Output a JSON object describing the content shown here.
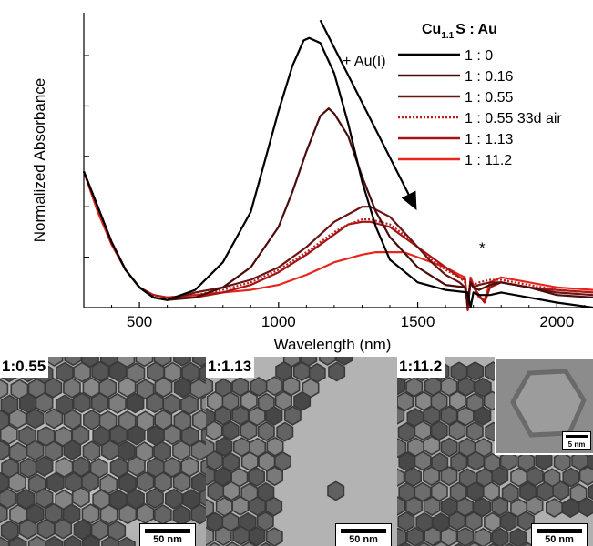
{
  "chart_data": {
    "type": "line",
    "title": "",
    "xlabel": "Wavelength (nm)",
    "ylabel": "Normalized Absorbance",
    "xlim": [
      300,
      2130
    ],
    "ylim": [
      0,
      1.17
    ],
    "x_ticks": [
      500,
      1000,
      1500,
      2000
    ],
    "x_tick_labels": [
      "500",
      "1000",
      "1500",
      "2000"
    ],
    "y_tick_labels_shown": false,
    "grid": false,
    "legend": {
      "position": "top-right",
      "header_main": "Cu",
      "header_sub": "1.1",
      "header_rest": "S : Au"
    },
    "annotations": [
      {
        "text": "+ Au(I)",
        "x": 1340,
        "y": 0.98
      },
      {
        "text": "*",
        "x": 1725,
        "y": 0.17
      }
    ],
    "arrow": {
      "from": [
        1150,
        1.14
      ],
      "to": [
        1490,
        0.4
      ]
    },
    "series": [
      {
        "name": "1 : 0",
        "color": "#000000",
        "dash": "solid",
        "points": [
          [
            300,
            0.54
          ],
          [
            350,
            0.4
          ],
          [
            400,
            0.26
          ],
          [
            450,
            0.15
          ],
          [
            500,
            0.08
          ],
          [
            550,
            0.04
          ],
          [
            600,
            0.03
          ],
          [
            700,
            0.07
          ],
          [
            800,
            0.18
          ],
          [
            900,
            0.38
          ],
          [
            950,
            0.58
          ],
          [
            1000,
            0.78
          ],
          [
            1050,
            0.96
          ],
          [
            1090,
            1.06
          ],
          [
            1110,
            1.07
          ],
          [
            1150,
            1.05
          ],
          [
            1200,
            0.93
          ],
          [
            1250,
            0.73
          ],
          [
            1300,
            0.5
          ],
          [
            1350,
            0.32
          ],
          [
            1400,
            0.19
          ],
          [
            1500,
            0.1
          ],
          [
            1600,
            0.07
          ],
          [
            1680,
            0.06
          ],
          [
            1690,
            0.0
          ],
          [
            1700,
            0.06
          ],
          [
            1720,
            0.05
          ],
          [
            1760,
            0.05
          ],
          [
            1800,
            0.06
          ],
          [
            1900,
            0.04
          ],
          [
            2000,
            0.02
          ],
          [
            2130,
            0.0
          ]
        ]
      },
      {
        "name": "1 : 0.16",
        "color": "#4a0d0d",
        "dash": "solid",
        "points": [
          [
            300,
            0.54
          ],
          [
            350,
            0.4
          ],
          [
            400,
            0.26
          ],
          [
            450,
            0.15
          ],
          [
            500,
            0.08
          ],
          [
            550,
            0.04
          ],
          [
            600,
            0.03
          ],
          [
            700,
            0.04
          ],
          [
            800,
            0.08
          ],
          [
            900,
            0.16
          ],
          [
            1000,
            0.32
          ],
          [
            1050,
            0.46
          ],
          [
            1100,
            0.62
          ],
          [
            1150,
            0.76
          ],
          [
            1180,
            0.79
          ],
          [
            1200,
            0.77
          ],
          [
            1250,
            0.68
          ],
          [
            1300,
            0.52
          ],
          [
            1350,
            0.38
          ],
          [
            1400,
            0.28
          ],
          [
            1500,
            0.16
          ],
          [
            1600,
            0.09
          ],
          [
            1670,
            0.08
          ],
          [
            1680,
            0.01
          ],
          [
            1690,
            0.1
          ],
          [
            1700,
            0.08
          ],
          [
            1720,
            0.07
          ],
          [
            1760,
            0.09
          ],
          [
            1800,
            0.1
          ],
          [
            1900,
            0.08
          ],
          [
            2000,
            0.05
          ],
          [
            2130,
            0.04
          ]
        ]
      },
      {
        "name": "1 : 0.55",
        "color": "#6b1414",
        "dash": "solid",
        "points": [
          [
            300,
            0.54
          ],
          [
            350,
            0.4
          ],
          [
            400,
            0.26
          ],
          [
            450,
            0.15
          ],
          [
            500,
            0.08
          ],
          [
            550,
            0.04
          ],
          [
            600,
            0.03
          ],
          [
            700,
            0.06
          ],
          [
            800,
            0.08
          ],
          [
            900,
            0.11
          ],
          [
            1000,
            0.16
          ],
          [
            1100,
            0.24
          ],
          [
            1200,
            0.34
          ],
          [
            1250,
            0.37
          ],
          [
            1300,
            0.4
          ],
          [
            1330,
            0.4
          ],
          [
            1400,
            0.36
          ],
          [
            1450,
            0.3
          ],
          [
            1500,
            0.24
          ],
          [
            1550,
            0.18
          ],
          [
            1600,
            0.13
          ],
          [
            1650,
            0.1
          ],
          [
            1670,
            0.08
          ],
          [
            1680,
            0.02
          ],
          [
            1690,
            0.1
          ],
          [
            1700,
            0.08
          ],
          [
            1720,
            0.09
          ],
          [
            1760,
            0.1
          ],
          [
            1800,
            0.1
          ],
          [
            1900,
            0.08
          ],
          [
            2000,
            0.06
          ],
          [
            2130,
            0.05
          ]
        ]
      },
      {
        "name": "1 : 0.55 33d air",
        "color": "#c01b1b",
        "dash": "dotted",
        "points": [
          [
            300,
            0.54
          ],
          [
            350,
            0.4
          ],
          [
            400,
            0.26
          ],
          [
            450,
            0.15
          ],
          [
            500,
            0.08
          ],
          [
            550,
            0.05
          ],
          [
            600,
            0.04
          ],
          [
            700,
            0.05
          ],
          [
            800,
            0.07
          ],
          [
            900,
            0.1
          ],
          [
            1000,
            0.15
          ],
          [
            1100,
            0.22
          ],
          [
            1200,
            0.3
          ],
          [
            1250,
            0.33
          ],
          [
            1300,
            0.35
          ],
          [
            1330,
            0.35
          ],
          [
            1400,
            0.33
          ],
          [
            1450,
            0.29
          ],
          [
            1500,
            0.24
          ],
          [
            1550,
            0.19
          ],
          [
            1600,
            0.15
          ],
          [
            1650,
            0.12
          ],
          [
            1670,
            0.1
          ],
          [
            1680,
            0.03
          ],
          [
            1690,
            0.11
          ],
          [
            1700,
            0.09
          ],
          [
            1720,
            0.1
          ],
          [
            1760,
            0.11
          ],
          [
            1800,
            0.11
          ],
          [
            1900,
            0.09
          ],
          [
            2000,
            0.07
          ],
          [
            2130,
            0.06
          ]
        ]
      },
      {
        "name": "1 : 1.13",
        "color": "#a31515",
        "dash": "solid",
        "points": [
          [
            300,
            0.54
          ],
          [
            350,
            0.4
          ],
          [
            400,
            0.26
          ],
          [
            450,
            0.15
          ],
          [
            500,
            0.08
          ],
          [
            550,
            0.05
          ],
          [
            600,
            0.04
          ],
          [
            700,
            0.04
          ],
          [
            800,
            0.06
          ],
          [
            900,
            0.09
          ],
          [
            1000,
            0.14
          ],
          [
            1100,
            0.21
          ],
          [
            1200,
            0.29
          ],
          [
            1250,
            0.33
          ],
          [
            1300,
            0.34
          ],
          [
            1330,
            0.34
          ],
          [
            1400,
            0.32
          ],
          [
            1450,
            0.28
          ],
          [
            1500,
            0.24
          ],
          [
            1550,
            0.2
          ],
          [
            1600,
            0.16
          ],
          [
            1650,
            0.12
          ],
          [
            1670,
            0.11
          ],
          [
            1680,
            -0.01
          ],
          [
            1690,
            0.11
          ],
          [
            1700,
            0.08
          ],
          [
            1720,
            0.05
          ],
          [
            1740,
            0.02
          ],
          [
            1760,
            0.08
          ],
          [
            1800,
            0.1
          ],
          [
            1900,
            0.08
          ],
          [
            2000,
            0.07
          ],
          [
            2130,
            0.06
          ]
        ]
      },
      {
        "name": "1 : 11.2",
        "color": "#e8251c",
        "dash": "solid",
        "points": [
          [
            300,
            0.54
          ],
          [
            350,
            0.38
          ],
          [
            400,
            0.25
          ],
          [
            450,
            0.15
          ],
          [
            500,
            0.08
          ],
          [
            550,
            0.05
          ],
          [
            600,
            0.04
          ],
          [
            700,
            0.05
          ],
          [
            800,
            0.06
          ],
          [
            900,
            0.07
          ],
          [
            1000,
            0.09
          ],
          [
            1100,
            0.13
          ],
          [
            1200,
            0.18
          ],
          [
            1300,
            0.21
          ],
          [
            1350,
            0.22
          ],
          [
            1400,
            0.22
          ],
          [
            1450,
            0.22
          ],
          [
            1500,
            0.2
          ],
          [
            1550,
            0.18
          ],
          [
            1600,
            0.16
          ],
          [
            1650,
            0.13
          ],
          [
            1670,
            0.12
          ],
          [
            1680,
            -0.01
          ],
          [
            1690,
            0.12
          ],
          [
            1700,
            0.09
          ],
          [
            1720,
            0.04
          ],
          [
            1740,
            0.03
          ],
          [
            1760,
            0.1
          ],
          [
            1800,
            0.12
          ],
          [
            1900,
            0.1
          ],
          [
            2000,
            0.08
          ],
          [
            2130,
            0.07
          ]
        ]
      }
    ]
  },
  "tem_panels": [
    {
      "label": "1:0.55",
      "scale_bar": "50 nm"
    },
    {
      "label": "1:1.13",
      "scale_bar": "50 nm"
    },
    {
      "label": "1:11.2",
      "scale_bar": "50 nm",
      "inset_scale_bar": "5 nm"
    }
  ]
}
